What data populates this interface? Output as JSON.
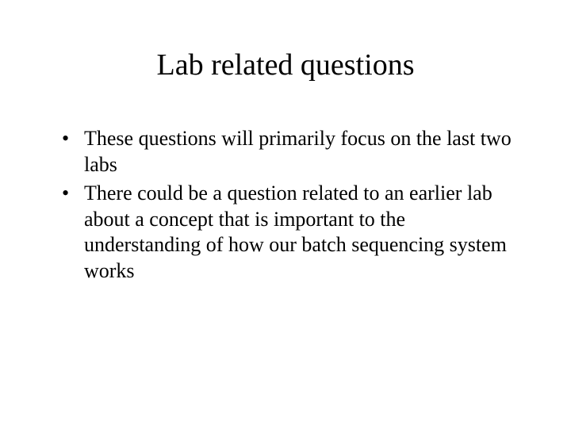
{
  "slide": {
    "title": "Lab related questions",
    "bullets": [
      "These questions will primarily focus on the last two labs",
      "There could be a question related to an earlier lab about a concept that is important to the understanding of how our batch sequencing system works"
    ]
  },
  "styling": {
    "background_color": "#ffffff",
    "text_color": "#000000",
    "font_family": "Times New Roman",
    "title_fontsize": 38,
    "body_fontsize": 26,
    "title_weight": "normal",
    "body_weight": "normal",
    "bullet_char": "•"
  }
}
